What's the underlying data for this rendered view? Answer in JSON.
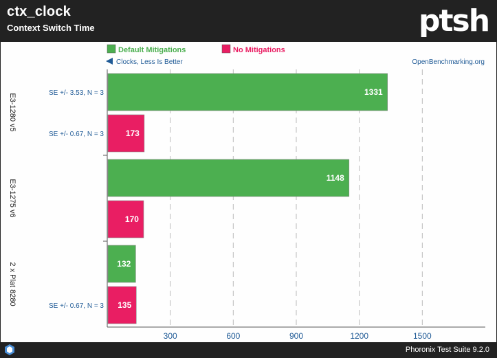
{
  "header": {
    "title": "ctx_clock",
    "subtitle": "Context Switch Time",
    "logo_text": "ptsh"
  },
  "footer": {
    "text": "Phoronix Test Suite 9.2.0"
  },
  "chart_data": {
    "type": "bar",
    "orientation": "horizontal",
    "title": "ctx_clock",
    "subtitle": "Context Switch Time",
    "direction_note": "Clocks, Less Is Better",
    "watermark": "OpenBenchmarking.org",
    "xlim": [
      0,
      1800
    ],
    "ticks": [
      300,
      600,
      900,
      1200,
      1500
    ],
    "grid": true,
    "categories": [
      "E3-1280 v5",
      "E3-1275 v6",
      "2 x Plat 8280"
    ],
    "series": [
      {
        "name": "Default Mitigations",
        "color": "#4caf50",
        "values": [
          1331,
          1148,
          132
        ],
        "se_labels": [
          "SE +/- 3.53, N = 3",
          "",
          ""
        ]
      },
      {
        "name": "No Mitigations",
        "color": "#e91e63",
        "values": [
          173,
          170,
          135
        ],
        "se_labels": [
          "SE +/- 0.67, N = 3",
          "",
          "SE +/- 0.67, N = 3"
        ]
      }
    ]
  }
}
